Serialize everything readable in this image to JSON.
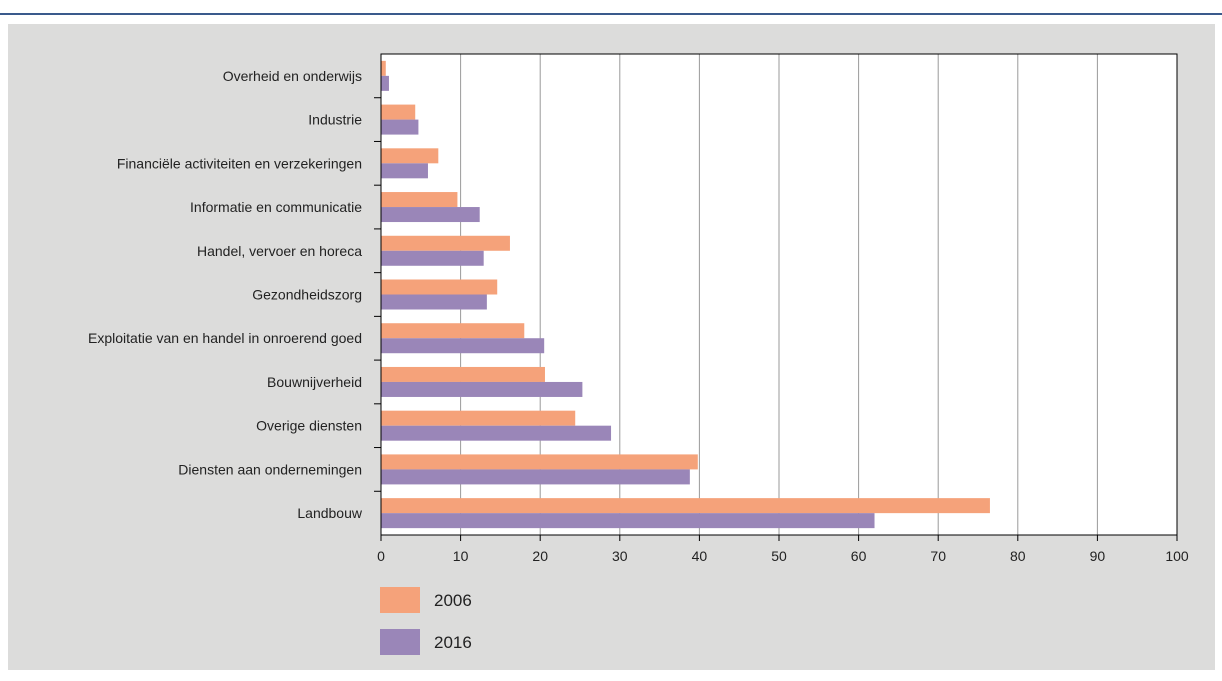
{
  "chart_data": {
    "type": "bar",
    "orientation": "horizontal",
    "categories": [
      "Overheid en onderwijs",
      "Industrie",
      "Financiële activiteiten en verzekeringen",
      "Informatie en communicatie",
      "Handel, vervoer en horeca",
      "Gezondheidszorg",
      "Exploitatie van en handel in onroerend goed",
      "Bouwnijverheid",
      "Overige diensten",
      "Diensten aan ondernemingen",
      "Landbouw"
    ],
    "series": [
      {
        "name": "2006",
        "color": "#f5a27a",
        "values": [
          0.6,
          4.3,
          7.2,
          9.6,
          16.2,
          14.6,
          18.0,
          20.6,
          24.4,
          39.8,
          76.5
        ]
      },
      {
        "name": "2016",
        "color": "#9a86b8",
        "values": [
          1.0,
          4.7,
          5.9,
          12.4,
          12.9,
          13.3,
          20.5,
          25.3,
          28.9,
          38.8,
          62.0
        ]
      }
    ],
    "xlim": [
      0,
      100
    ],
    "xticks": [
      "0",
      "10",
      "20",
      "30",
      "40",
      "50",
      "60",
      "70",
      "80",
      "90",
      "100"
    ],
    "grid": true,
    "legend": "bottom-left"
  }
}
